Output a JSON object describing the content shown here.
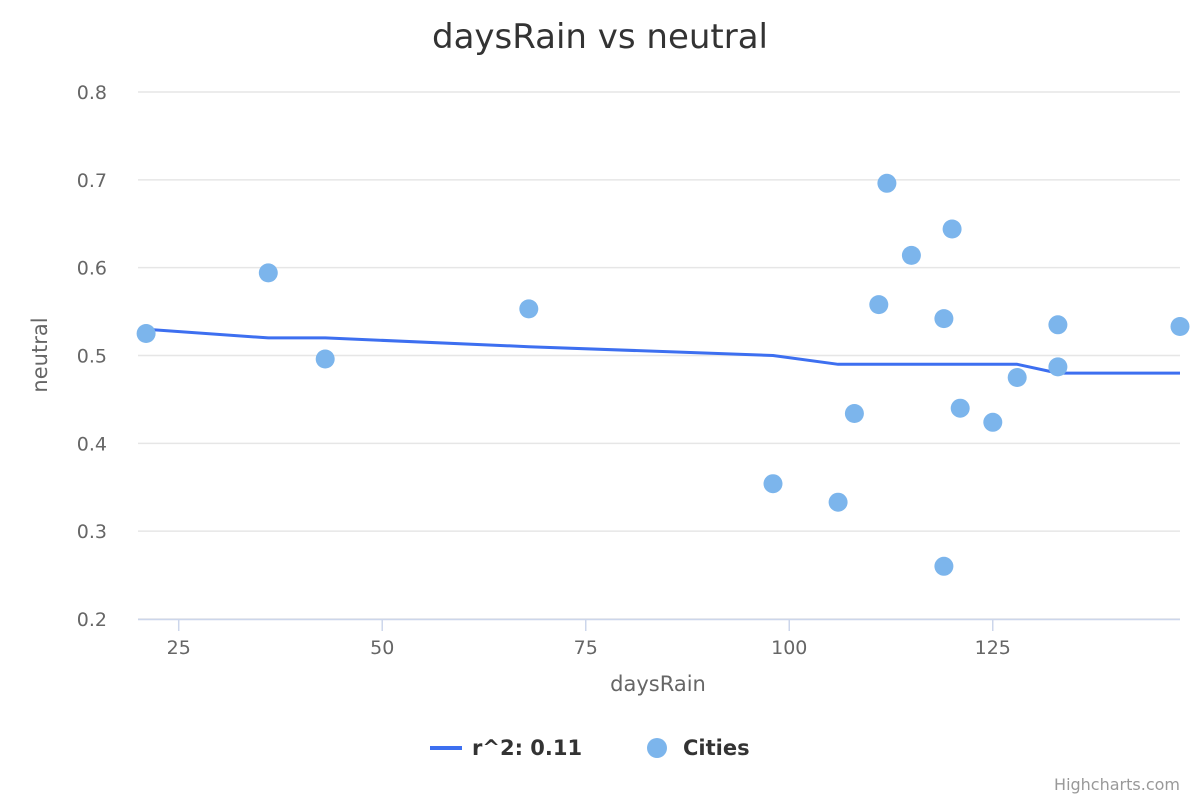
{
  "chart_data": {
    "type": "scatter",
    "title": "daysRain vs neutral",
    "xlabel": "daysRain",
    "ylabel": "neutral",
    "xlim": [
      20,
      148
    ],
    "ylim": [
      0.2,
      0.8
    ],
    "xticks": [
      25,
      50,
      75,
      100,
      125
    ],
    "yticks": [
      0.2,
      0.3,
      0.4,
      0.5,
      0.6,
      0.7,
      0.8
    ],
    "grid": "horizontal",
    "legend_position": "bottom-center",
    "series": [
      {
        "name": "r^2: 0.11",
        "type": "line",
        "color": "#3d6ff0",
        "points": [
          [
            21,
            0.53
          ],
          [
            36,
            0.52
          ],
          [
            43,
            0.52
          ],
          [
            68,
            0.51
          ],
          [
            98,
            0.5
          ],
          [
            106,
            0.49
          ],
          [
            108,
            0.49
          ],
          [
            111,
            0.49
          ],
          [
            112,
            0.49
          ],
          [
            115,
            0.49
          ],
          [
            119,
            0.49
          ],
          [
            120,
            0.49
          ],
          [
            121,
            0.49
          ],
          [
            125,
            0.49
          ],
          [
            128,
            0.49
          ],
          [
            133,
            0.48
          ],
          [
            148,
            0.48
          ]
        ]
      },
      {
        "name": "Cities",
        "type": "scatter",
        "color": "#7cb5ec",
        "points": [
          [
            21,
            0.525
          ],
          [
            36,
            0.594
          ],
          [
            43,
            0.496
          ],
          [
            68,
            0.553
          ],
          [
            98,
            0.354
          ],
          [
            106,
            0.333
          ],
          [
            108,
            0.434
          ],
          [
            111,
            0.558
          ],
          [
            112,
            0.696
          ],
          [
            115,
            0.614
          ],
          [
            119,
            0.542
          ],
          [
            119,
            0.26
          ],
          [
            120,
            0.644
          ],
          [
            121,
            0.44
          ],
          [
            125,
            0.424
          ],
          [
            128,
            0.475
          ],
          [
            133,
            0.535
          ],
          [
            133,
            0.487
          ],
          [
            148,
            0.533
          ]
        ]
      }
    ]
  },
  "credits": "Highcharts.com"
}
